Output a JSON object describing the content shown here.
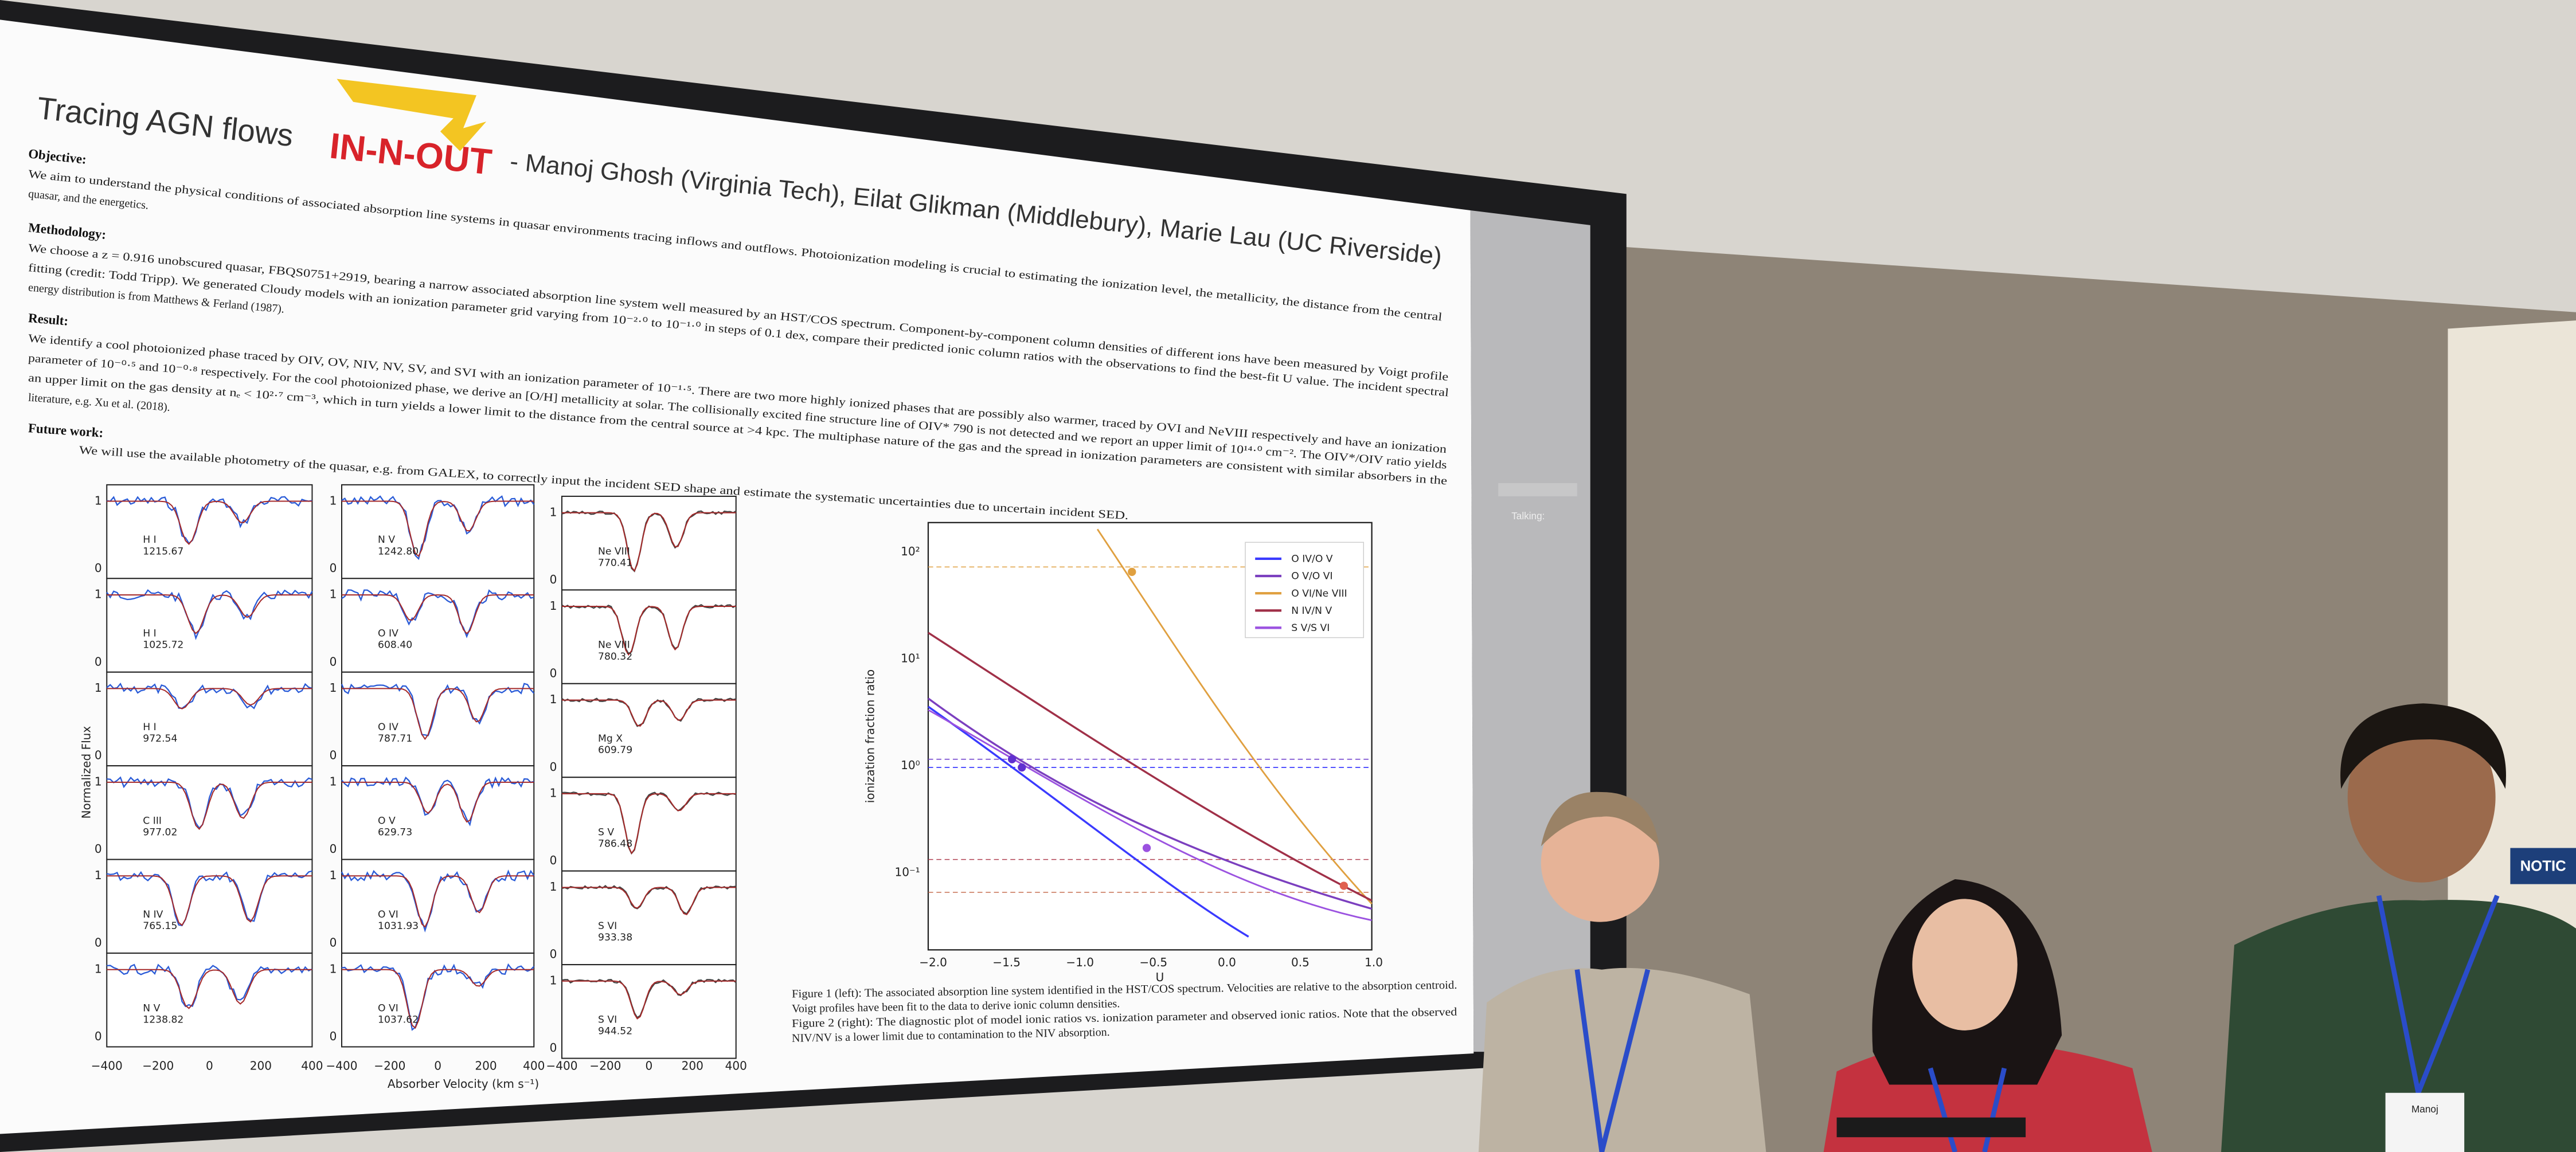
{
  "slide": {
    "title": "Tracing AGN flows",
    "logo": "IN-N-OUT",
    "authors": "- Manoj Ghosh (Virginia Tech), Eilat Glikman (Middlebury), Marie Lau (UC Riverside)",
    "sections": [
      {
        "heading": "Objective:",
        "lines": [
          "We aim to understand the physical conditions of  associated absorption line systems  in quasar environments tracing inflows and outflows. Photoionization modeling is crucial to estimating the ionization level, the metallicity, the distance from the central",
          "quasar, and the energetics."
        ]
      },
      {
        "heading": "Methodology:",
        "lines": [
          "We choose a z = 0.916 unobscured quasar, FBQS0751+2919, bearing a narrow associated absorption line system well measured by an HST/COS spectrum. Component-by-component column densities of different ions have been measured by Voigt profile",
          "fitting (credit: Todd Tripp). We generated Cloudy models with an ionization parameter grid varying from 10⁻²·⁰ to 10⁻¹·⁰ in steps of 0.1 dex, compare their predicted ionic column ratios with the observations to find the best-fit U value. The incident spectral",
          "energy distribution is from Matthews & Ferland (1987)."
        ]
      },
      {
        "heading": "Result:",
        "lines": [
          "We identify a cool photoionized phase traced by OIV, OV, NIV, NV, SV, and SVI with an ionization parameter of 10⁻¹·⁵. There are two more highly ionized phases that are possibly also warmer, traced by OVI and NeVIII respectively and have an ionization",
          "parameter of 10⁻⁰·⁵ and 10⁻⁰·⁸ respectively. For the cool photoionized phase, we derive an [O/H] metallicity at solar.  The collisionally excited fine structure line of OIV* 790 is not detected and we report an upper limit of 10¹⁴·⁰ cm⁻². The OIV*/OIV ratio yields",
          "an upper limit on the gas density at  nₑ <  10²·⁷ cm⁻³, which in turn yields a lower limit to the distance from the central source at >4 kpc. The multiphase nature of the gas and the spread in ionization parameters are consistent with similar absorbers in the",
          "literature, e.g. Xu et al. (2018)."
        ]
      },
      {
        "heading": "Future work:",
        "lines": [
          "We will use the available photometry of the quasar, e.g. from GALEX, to correctly input the incident SED shape and estimate the systematic uncertainties due to uncertain incident SED."
        ]
      }
    ],
    "figure_left": {
      "panels": [
        [
          [
            "H I",
            "1215.67"
          ],
          [
            "H I",
            "1025.72"
          ],
          [
            "H I",
            "972.54"
          ],
          [
            "C III",
            "977.02"
          ],
          [
            "N IV",
            "765.15"
          ],
          [
            "N V",
            "1238.82"
          ]
        ],
        [
          [
            "N V",
            "1242.80"
          ],
          [
            "O IV",
            "608.40"
          ],
          [
            "O IV",
            "787.71"
          ],
          [
            "O V",
            "629.73"
          ],
          [
            "O VI",
            "1031.93"
          ],
          [
            "O VI",
            "1037.62"
          ]
        ],
        [
          [
            "Ne VIII",
            "770.41"
          ],
          [
            "Ne VIII",
            "780.32"
          ],
          [
            "Mg X",
            "609.79"
          ],
          [
            "S V",
            "786.48"
          ],
          [
            "S VI",
            "933.38"
          ],
          [
            "S VI",
            "944.52"
          ]
        ]
      ],
      "y_label": "Normalized Flux",
      "x_label": "Absorber Velocity (km s⁻¹)",
      "x_ticks": [
        "−400",
        "−200",
        "0",
        "200",
        "400"
      ],
      "y_ticks": [
        "1",
        "0"
      ]
    },
    "figure_right": {
      "legend": [
        "O IV/O V",
        "O V/O VI",
        "O VI/Ne VIII",
        "N IV/N V",
        "S V/S VI"
      ],
      "y_label": "ionization fraction ratio",
      "x_label": "U",
      "x_ticks": [
        "−2.0",
        "−1.5",
        "−1.0",
        "−0.5",
        "0.0",
        "0.5",
        "1.0"
      ],
      "y_ticks": [
        "10²",
        "10¹",
        "10⁰",
        "10⁻¹"
      ]
    },
    "caption": [
      "Figure 1 (left): The associated absorption line system identified in the HST/COS spectrum. Velocities are relative to the absorption centroid.",
      "Voigt profiles have been fit to the data to derive ionic column densities.",
      "Figure 2 (right): The diagnostic plot of model ionic ratios vs. ionization parameter and observed ionic ratios. Note that the observed",
      "NIV/NV is a lower limit due to contamination to the NIV absorption."
    ]
  },
  "room": {
    "status": "Talking:",
    "sign": "NOTIC",
    "badge": "Manoj"
  }
}
